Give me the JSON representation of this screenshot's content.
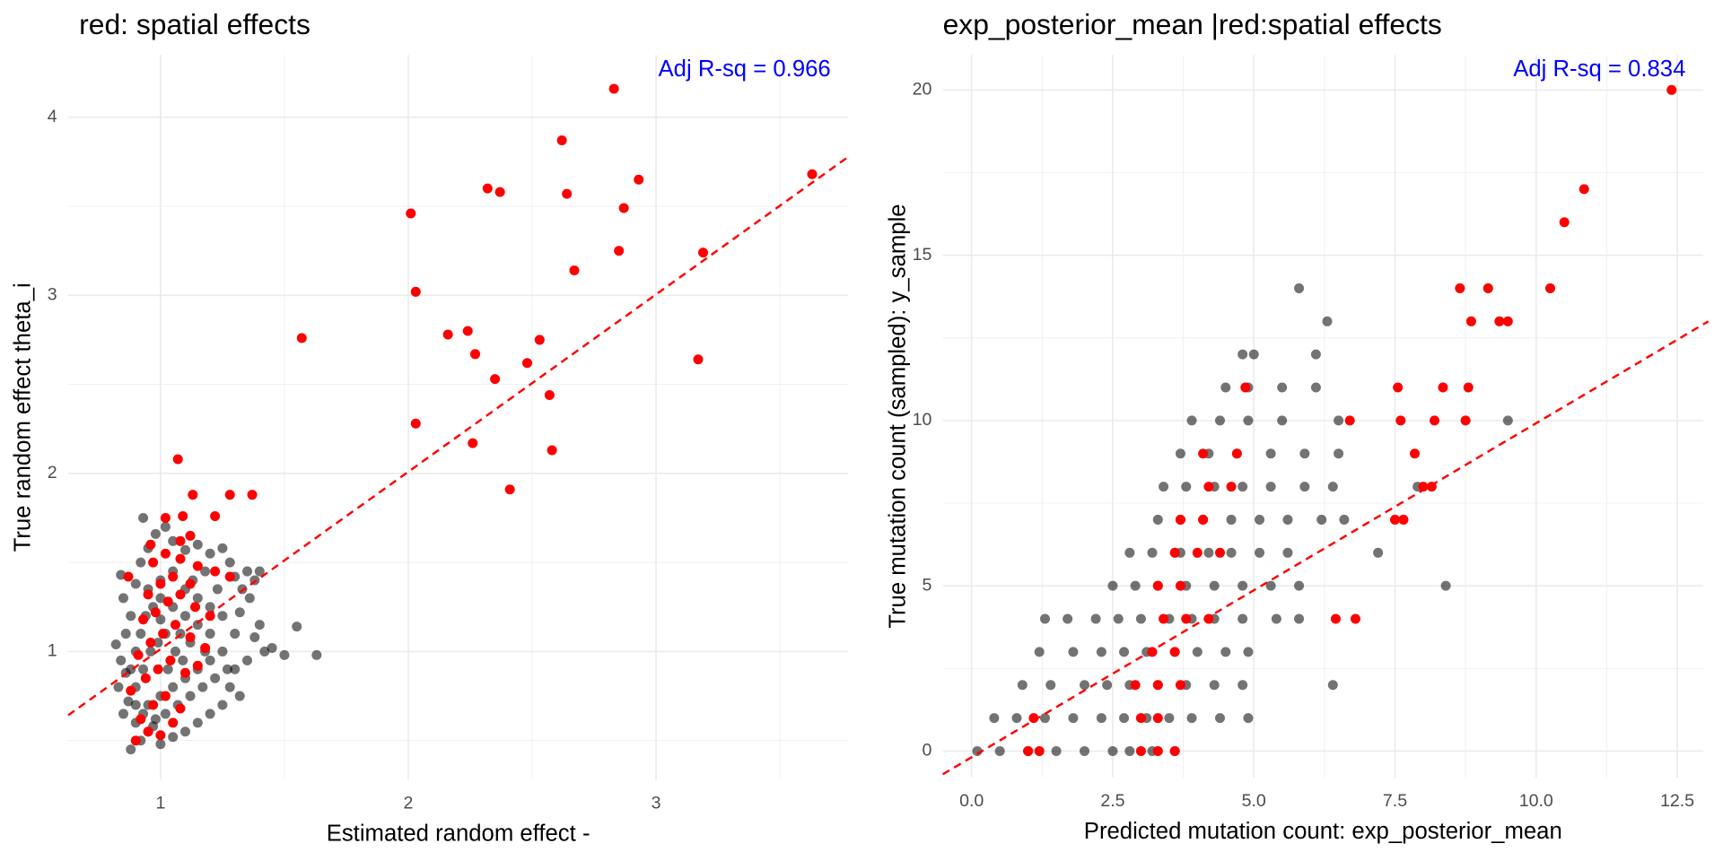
{
  "chart_data": [
    {
      "type": "scatter",
      "title": "red: spatial effects",
      "x_label": "Estimated random effect -",
      "y_label": "True random effect theta_i",
      "annotation": "Adj R-sq = 0.966",
      "annotation_color": "#0000ff",
      "xlim": [
        0.627,
        3.776
      ],
      "ylim": [
        0.28,
        4.35
      ],
      "xticks": [
        1,
        2,
        3
      ],
      "yticks": [
        1,
        2,
        3,
        4
      ],
      "x_minor_ticks": [
        1.5,
        2.5,
        3.5
      ],
      "y_minor_ticks": [
        0.5,
        1.5,
        2.5,
        3.5
      ],
      "grid": true,
      "fit_line": {
        "x": [
          0.627,
          3.776
        ],
        "y": [
          0.642,
          3.778
        ],
        "color": "#ff0000"
      },
      "series": [
        {
          "color": "#000000",
          "opacity": 0.55,
          "x": [
            0.88,
            0.92,
            0.95,
            0.9,
            0.85,
            0.87,
            0.83,
            0.86,
            0.84,
            0.82,
            0.86,
            0.88,
            0.85,
            0.9,
            0.84,
            0.92,
            0.95,
            0.98,
            0.93,
            1.02,
            1.05,
            1.1,
            1.15,
            1.2,
            1.25,
            1.28,
            1.3,
            1.35,
            1.38,
            1.4,
            1.36,
            1.32,
            1.4,
            1.38,
            1.42,
            1.45,
            1.5,
            1.55,
            1.63,
            1.35,
            1.3,
            1.28,
            1.32,
            1.25,
            1.2,
            1.15,
            1.1,
            1.05,
            1.0,
            0.97,
            0.95,
            1.0,
            1.05,
            1.1,
            1.15,
            1.2,
            1.25,
            1.2,
            1.15,
            1.1,
            1.05,
            1.0,
            0.95,
            1.0,
            1.05,
            1.1,
            1.15,
            1.2,
            1.25,
            1.3,
            0.9,
            0.93,
            0.96,
            0.99,
            1.02,
            1.06,
            1.09,
            1.12,
            1.18,
            1.22,
            0.9,
            0.92,
            0.94,
            0.97,
            1.0,
            1.03,
            1.07,
            1.12,
            1.17,
            1.27,
            0.88,
            0.9,
            0.93,
            0.98,
            1.02,
            1.08,
            1.13,
            1.18,
            1.23,
            1.33
          ],
          "y": [
            0.45,
            0.5,
            0.55,
            0.6,
            0.65,
            0.72,
            0.8,
            0.88,
            0.95,
            1.04,
            1.1,
            1.2,
            1.3,
            1.38,
            1.43,
            1.5,
            1.58,
            1.66,
            1.75,
            1.7,
            1.62,
            1.57,
            1.6,
            1.55,
            1.58,
            1.5,
            1.42,
            1.45,
            1.4,
            1.45,
            1.3,
            1.22,
            1.15,
            1.08,
            1.0,
            1.02,
            0.98,
            1.14,
            0.98,
            0.95,
            0.9,
            0.8,
            0.75,
            0.7,
            0.65,
            0.6,
            0.55,
            0.52,
            0.48,
            0.58,
            0.7,
            0.75,
            0.8,
            0.85,
            0.9,
            0.95,
            1.0,
            1.1,
            1.15,
            1.2,
            1.25,
            1.3,
            1.35,
            1.4,
            1.45,
            1.35,
            1.3,
            1.25,
            1.2,
            1.1,
            0.8,
            0.9,
            1.0,
            1.05,
            1.1,
            1.0,
            0.95,
            1.05,
            1.0,
            0.85,
            1.0,
            1.1,
            1.2,
            1.25,
            1.18,
            0.9,
            0.7,
            0.75,
            0.8,
            0.9,
            0.9,
            0.7,
            0.65,
            0.62,
            0.65,
            1.1,
            1.4,
            1.45,
            1.35,
            1.35
          ]
        },
        {
          "color": "#ff0000",
          "opacity": 1,
          "x": [
            0.9,
            0.95,
            1.0,
            1.05,
            0.92,
            0.97,
            1.02,
            1.08,
            0.88,
            0.94,
            0.99,
            1.04,
            1.1,
            1.15,
            0.91,
            0.96,
            1.01,
            1.06,
            1.12,
            1.18,
            0.93,
            0.98,
            1.03,
            1.08,
            1.14,
            1.2,
            0.95,
            1.0,
            1.05,
            1.12,
            0.97,
            1.02,
            1.08,
            1.15,
            1.22,
            1.28,
            1.08,
            1.12,
            0.96,
            0.87,
            2.83,
            2.62,
            2.32,
            2.37,
            2.93,
            3.63,
            2.64,
            2.01,
            2.87,
            2.85,
            3.19,
            2.67,
            2.03,
            1.57,
            2.16,
            2.24,
            2.53,
            2.27,
            2.35,
            2.48,
            3.17,
            2.57,
            2.03,
            2.26,
            2.58,
            2.41,
            1.07,
            1.37,
            1.28,
            1.13,
            1.22,
            1.09,
            1.02
          ],
          "y": [
            0.5,
            0.55,
            0.53,
            0.6,
            0.62,
            0.7,
            0.75,
            0.68,
            0.78,
            0.85,
            0.9,
            0.95,
            0.88,
            0.92,
            0.98,
            1.05,
            1.1,
            1.15,
            1.08,
            1.02,
            1.18,
            1.22,
            1.28,
            1.32,
            1.25,
            1.2,
            1.32,
            1.38,
            1.42,
            1.38,
            1.5,
            1.55,
            1.52,
            1.48,
            1.45,
            1.42,
            1.62,
            1.65,
            1.6,
            1.42,
            4.16,
            3.87,
            3.6,
            3.58,
            3.65,
            3.68,
            3.57,
            3.46,
            3.49,
            3.25,
            3.24,
            3.14,
            3.02,
            2.76,
            2.78,
            2.8,
            2.75,
            2.67,
            2.53,
            2.62,
            2.64,
            2.44,
            2.28,
            2.17,
            2.13,
            1.91,
            2.08,
            1.88,
            1.88,
            1.88,
            1.76,
            1.76,
            1.75
          ]
        }
      ]
    },
    {
      "type": "scatter",
      "title": "exp_posterior_mean |red:spatial effects",
      "x_label": "Predicted mutation count: exp_posterior_mean",
      "y_label": "True mutation count (sampled): y_sample",
      "annotation": "Adj R-sq = 0.834",
      "annotation_color": "#0000ff",
      "xlim": [
        -0.51,
        12.96
      ],
      "ylim": [
        -0.8,
        21.06
      ],
      "xticks": [
        {
          "value": 0,
          "label": "0.0"
        },
        2.5,
        {
          "value": 5,
          "label": "5.0"
        },
        7.5,
        {
          "value": 10,
          "label": "10.0"
        },
        12.5
      ],
      "yticks": [
        0,
        5,
        10,
        15,
        20
      ],
      "x_minor_ticks": [
        1.25,
        3.75,
        6.25,
        8.75,
        11.25
      ],
      "y_minor_ticks": [
        2.5,
        7.5,
        12.5,
        17.5
      ],
      "grid": true,
      "fit_line": {
        "x": [
          -0.51,
          13.05
        ],
        "y": [
          -0.7,
          13.0
        ],
        "color": "#ff0000"
      },
      "series": [
        {
          "color": "#000000",
          "opacity": 0.55,
          "x": [
            0.1,
            0.5,
            1.0,
            1.5,
            2.0,
            2.5,
            2.8,
            3.2,
            3.6,
            0.4,
            0.8,
            1.3,
            1.8,
            2.3,
            2.7,
            3.1,
            3.5,
            3.9,
            4.4,
            4.9,
            0.9,
            1.4,
            2.0,
            2.4,
            2.8,
            3.3,
            3.8,
            4.3,
            4.8,
            6.4,
            1.2,
            1.8,
            2.3,
            2.7,
            3.1,
            3.6,
            4.0,
            4.5,
            4.9,
            1.3,
            1.7,
            2.2,
            2.6,
            3.0,
            3.5,
            3.9,
            4.3,
            4.8,
            5.4,
            5.8,
            2.5,
            2.9,
            3.3,
            3.8,
            4.3,
            4.8,
            5.3,
            5.8,
            8.4,
            2.8,
            3.2,
            3.7,
            4.2,
            4.6,
            5.1,
            5.6,
            7.2,
            3.3,
            3.7,
            4.1,
            4.6,
            5.1,
            5.6,
            6.2,
            6.6,
            3.4,
            3.8,
            4.3,
            4.8,
            5.3,
            5.9,
            6.4,
            7.9,
            3.7,
            4.2,
            4.7,
            5.3,
            5.9,
            6.5,
            3.9,
            4.4,
            4.9,
            5.5,
            6.5,
            9.5,
            4.5,
            4.9,
            5.5,
            6.1,
            4.8,
            5.0,
            6.1,
            6.3,
            5.8
          ],
          "y": [
            0,
            0,
            0,
            0,
            0,
            0,
            0,
            0,
            0,
            1,
            1,
            1,
            1,
            1,
            1,
            1,
            1,
            1,
            1,
            1,
            2,
            2,
            2,
            2,
            2,
            2,
            2,
            2,
            2,
            2,
            3,
            3,
            3,
            3,
            3,
            3,
            3,
            3,
            3,
            4,
            4,
            4,
            4,
            4,
            4,
            4,
            4,
            4,
            4,
            4,
            5,
            5,
            5,
            5,
            5,
            5,
            5,
            5,
            5,
            6,
            6,
            6,
            6,
            6,
            6,
            6,
            6,
            7,
            7,
            7,
            7,
            7,
            7,
            7,
            7,
            8,
            8,
            8,
            8,
            8,
            8,
            8,
            8,
            9,
            9,
            9,
            9,
            9,
            9,
            10,
            10,
            10,
            10,
            10,
            10,
            11,
            11,
            11,
            11,
            12,
            12,
            12,
            13,
            14
          ]
        },
        {
          "color": "#ff0000",
          "opacity": 1,
          "x": [
            3.0,
            3.3,
            3.6,
            3.0,
            3.3,
            2.9,
            3.3,
            3.7,
            3.2,
            3.6,
            3.4,
            3.8,
            4.2,
            3.3,
            3.7,
            3.6,
            4.0,
            4.4,
            3.7,
            4.1,
            4.2,
            4.6,
            4.1,
            4.7,
            12.4,
            10.85,
            10.5,
            10.25,
            8.65,
            9.15,
            8.85,
            9.35,
            9.5,
            7.55,
            8.35,
            8.8,
            4.85,
            7.6,
            8.2,
            8.75,
            6.7,
            7.85,
            8.0,
            8.15,
            7.5,
            7.65,
            6.45,
            6.8,
            1.1,
            1.0,
            1.2
          ],
          "y": [
            0,
            0,
            0,
            1,
            1,
            2,
            2,
            2,
            3,
            3,
            4,
            4,
            4,
            5,
            5,
            6,
            6,
            6,
            7,
            7,
            8,
            8,
            9,
            9,
            20,
            17,
            16,
            14,
            14,
            14,
            13,
            13,
            13,
            11,
            11,
            11,
            11,
            10,
            10,
            10,
            10,
            9,
            8,
            8,
            7,
            7,
            4,
            4,
            1,
            0,
            0
          ]
        }
      ]
    }
  ]
}
